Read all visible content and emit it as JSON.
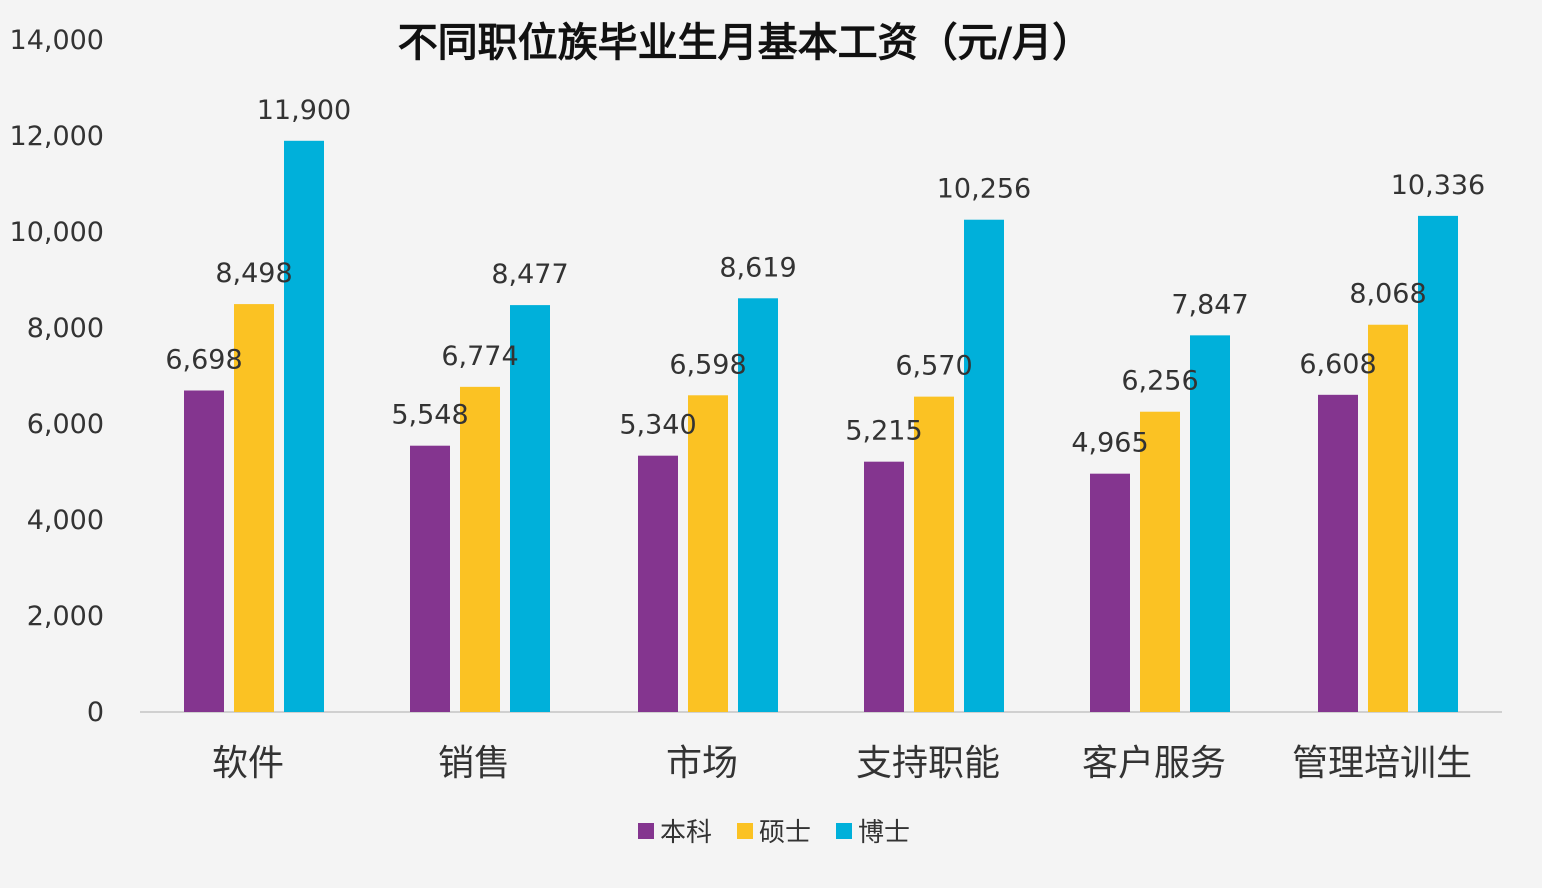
{
  "chart_data": {
    "type": "bar",
    "title": "不同职位族毕业生月基本工资（元/月）",
    "xlabel": "",
    "ylabel": "",
    "ylim": [
      0,
      14000
    ],
    "yticks": [
      0,
      2000,
      4000,
      6000,
      8000,
      10000,
      12000,
      14000
    ],
    "ytick_labels": [
      "0",
      "2,000",
      "4,000",
      "6,000",
      "8,000",
      "10,000",
      "12,000",
      "14,000"
    ],
    "grid": false,
    "legend_position": "bottom-center",
    "categories": [
      "软件",
      "销售",
      "市场",
      "支持职能",
      "客户服务",
      "管理培训生"
    ],
    "series": [
      {
        "name": "本科",
        "color": "#84358f",
        "values": [
          6698,
          5548,
          5340,
          5215,
          4965,
          6608
        ],
        "labels": [
          "6,698",
          "5,548",
          "5,340",
          "5,215",
          "4,965",
          "6,608"
        ]
      },
      {
        "name": "硕士",
        "color": "#fbc223",
        "values": [
          8498,
          6774,
          6598,
          6570,
          6256,
          8068
        ],
        "labels": [
          "8,498",
          "6,774",
          "6,598",
          "6,570",
          "6,256",
          "8,068"
        ]
      },
      {
        "name": "博士",
        "color": "#00b0da",
        "values": [
          11900,
          8477,
          8619,
          10256,
          7847,
          10336
        ],
        "labels": [
          "11,900",
          "8,477",
          "8,619",
          "10,256",
          "7,847",
          "10,336"
        ]
      }
    ]
  }
}
